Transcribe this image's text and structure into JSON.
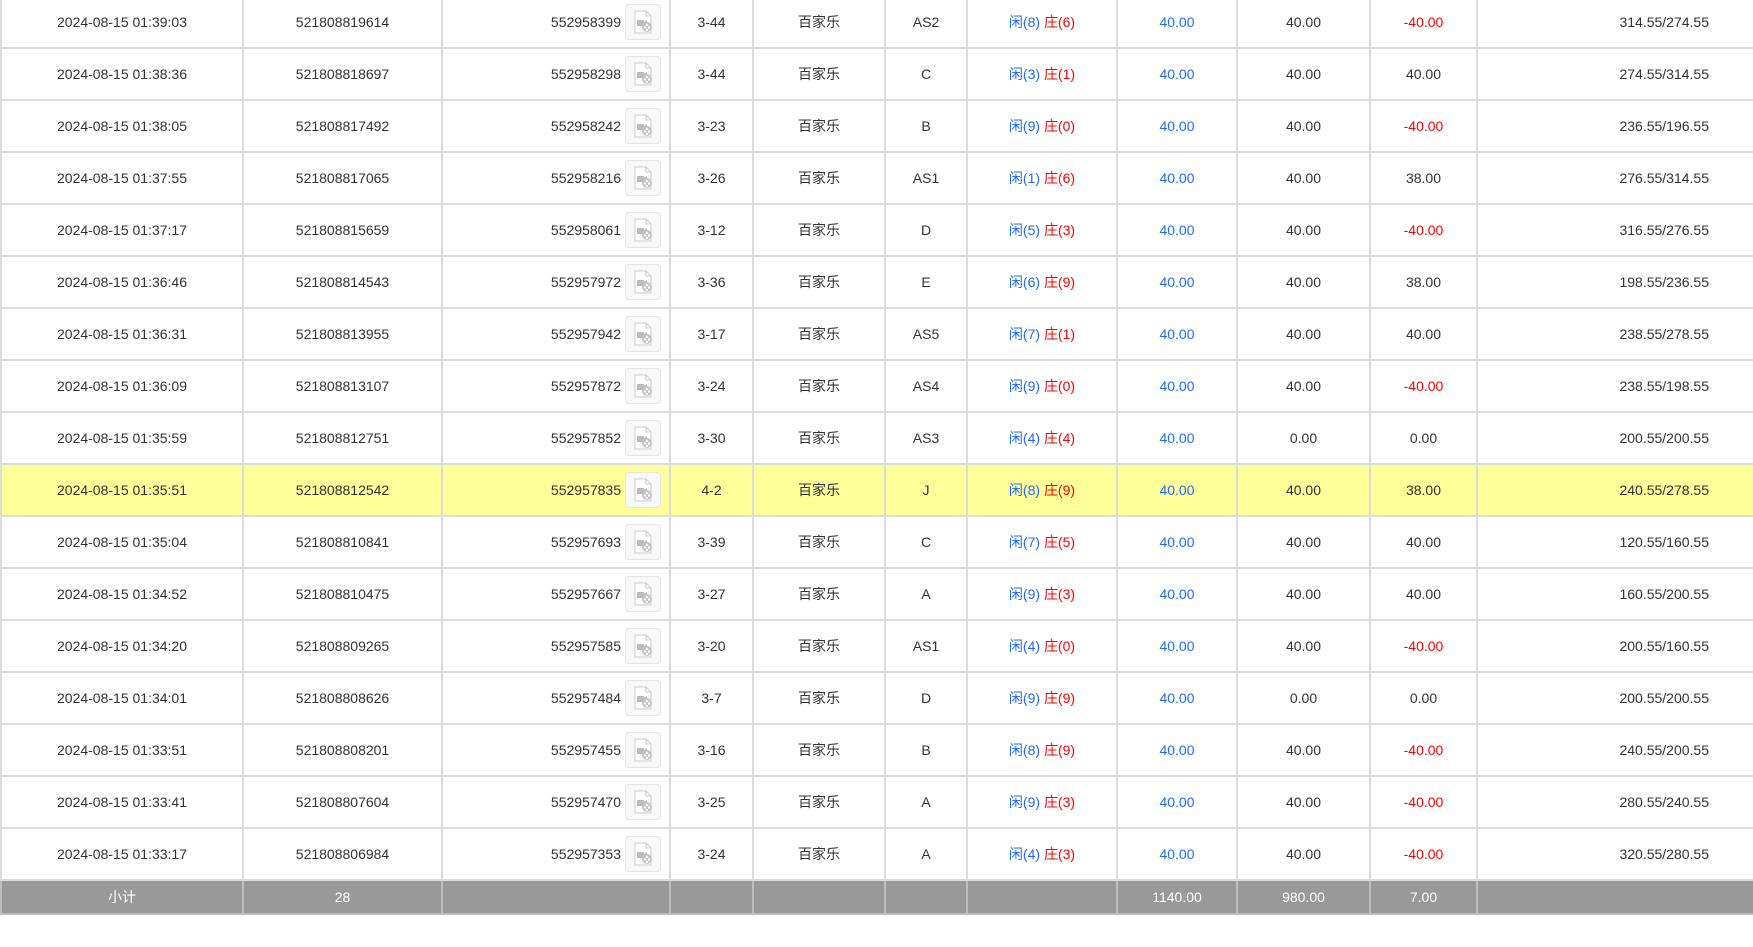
{
  "colors": {
    "player": "#1e6bff",
    "banker": "#ff0000",
    "highlight": "#ffff99",
    "footer": "#999999"
  },
  "rows": [
    {
      "time": "2024-08-15 01:39:03",
      "bet_id": "521808819614",
      "game_id": "552958399",
      "table": "3-44",
      "game": "百家乐",
      "seat": "AS2",
      "player": "闲(8)",
      "banker": "庄(6)",
      "bet": "40.00",
      "valid": "40.00",
      "win": "-40.00",
      "balance": "314.55/274.55"
    },
    {
      "time": "2024-08-15 01:38:36",
      "bet_id": "521808818697",
      "game_id": "552958298",
      "table": "3-44",
      "game": "百家乐",
      "seat": "C",
      "player": "闲(3)",
      "banker": "庄(1)",
      "bet": "40.00",
      "valid": "40.00",
      "win": "40.00",
      "balance": "274.55/314.55"
    },
    {
      "time": "2024-08-15 01:38:05",
      "bet_id": "521808817492",
      "game_id": "552958242",
      "table": "3-23",
      "game": "百家乐",
      "seat": "B",
      "player": "闲(9)",
      "banker": "庄(0)",
      "bet": "40.00",
      "valid": "40.00",
      "win": "-40.00",
      "balance": "236.55/196.55"
    },
    {
      "time": "2024-08-15 01:37:55",
      "bet_id": "521808817065",
      "game_id": "552958216",
      "table": "3-26",
      "game": "百家乐",
      "seat": "AS1",
      "player": "闲(1)",
      "banker": "庄(6)",
      "bet": "40.00",
      "valid": "40.00",
      "win": "38.00",
      "balance": "276.55/314.55"
    },
    {
      "time": "2024-08-15 01:37:17",
      "bet_id": "521808815659",
      "game_id": "552958061",
      "table": "3-12",
      "game": "百家乐",
      "seat": "D",
      "player": "闲(5)",
      "banker": "庄(3)",
      "bet": "40.00",
      "valid": "40.00",
      "win": "-40.00",
      "balance": "316.55/276.55"
    },
    {
      "time": "2024-08-15 01:36:46",
      "bet_id": "521808814543",
      "game_id": "552957972",
      "table": "3-36",
      "game": "百家乐",
      "seat": "E",
      "player": "闲(6)",
      "banker": "庄(9)",
      "bet": "40.00",
      "valid": "40.00",
      "win": "38.00",
      "balance": "198.55/236.55"
    },
    {
      "time": "2024-08-15 01:36:31",
      "bet_id": "521808813955",
      "game_id": "552957942",
      "table": "3-17",
      "game": "百家乐",
      "seat": "AS5",
      "player": "闲(7)",
      "banker": "庄(1)",
      "bet": "40.00",
      "valid": "40.00",
      "win": "40.00",
      "balance": "238.55/278.55"
    },
    {
      "time": "2024-08-15 01:36:09",
      "bet_id": "521808813107",
      "game_id": "552957872",
      "table": "3-24",
      "game": "百家乐",
      "seat": "AS4",
      "player": "闲(9)",
      "banker": "庄(0)",
      "bet": "40.00",
      "valid": "40.00",
      "win": "-40.00",
      "balance": "238.55/198.55"
    },
    {
      "time": "2024-08-15 01:35:59",
      "bet_id": "521808812751",
      "game_id": "552957852",
      "table": "3-30",
      "game": "百家乐",
      "seat": "AS3",
      "player": "闲(4)",
      "banker": "庄(4)",
      "bet": "40.00",
      "valid": "0.00",
      "win": "0.00",
      "balance": "200.55/200.55"
    },
    {
      "time": "2024-08-15 01:35:51",
      "bet_id": "521808812542",
      "game_id": "552957835",
      "table": "4-2",
      "game": "百家乐",
      "seat": "J",
      "player": "闲(8)",
      "banker": "庄(9)",
      "bet": "40.00",
      "valid": "40.00",
      "win": "38.00",
      "balance": "240.55/278.55",
      "highlighted": true
    },
    {
      "time": "2024-08-15 01:35:04",
      "bet_id": "521808810841",
      "game_id": "552957693",
      "table": "3-39",
      "game": "百家乐",
      "seat": "C",
      "player": "闲(7)",
      "banker": "庄(5)",
      "bet": "40.00",
      "valid": "40.00",
      "win": "40.00",
      "balance": "120.55/160.55"
    },
    {
      "time": "2024-08-15 01:34:52",
      "bet_id": "521808810475",
      "game_id": "552957667",
      "table": "3-27",
      "game": "百家乐",
      "seat": "A",
      "player": "闲(9)",
      "banker": "庄(3)",
      "bet": "40.00",
      "valid": "40.00",
      "win": "40.00",
      "balance": "160.55/200.55"
    },
    {
      "time": "2024-08-15 01:34:20",
      "bet_id": "521808809265",
      "game_id": "552957585",
      "table": "3-20",
      "game": "百家乐",
      "seat": "AS1",
      "player": "闲(4)",
      "banker": "庄(0)",
      "bet": "40.00",
      "valid": "40.00",
      "win": "-40.00",
      "balance": "200.55/160.55"
    },
    {
      "time": "2024-08-15 01:34:01",
      "bet_id": "521808808626",
      "game_id": "552957484",
      "table": "3-7",
      "game": "百家乐",
      "seat": "D",
      "player": "闲(9)",
      "banker": "庄(9)",
      "bet": "40.00",
      "valid": "0.00",
      "win": "0.00",
      "balance": "200.55/200.55"
    },
    {
      "time": "2024-08-15 01:33:51",
      "bet_id": "521808808201",
      "game_id": "552957455",
      "table": "3-16",
      "game": "百家乐",
      "seat": "B",
      "player": "闲(8)",
      "banker": "庄(9)",
      "bet": "40.00",
      "valid": "40.00",
      "win": "-40.00",
      "balance": "240.55/200.55"
    },
    {
      "time": "2024-08-15 01:33:41",
      "bet_id": "521808807604",
      "game_id": "552957470",
      "table": "3-25",
      "game": "百家乐",
      "seat": "A",
      "player": "闲(9)",
      "banker": "庄(3)",
      "bet": "40.00",
      "valid": "40.00",
      "win": "-40.00",
      "balance": "280.55/240.55"
    },
    {
      "time": "2024-08-15 01:33:17",
      "bet_id": "521808806984",
      "game_id": "552957353",
      "table": "3-24",
      "game": "百家乐",
      "seat": "A",
      "player": "闲(4)",
      "banker": "庄(3)",
      "bet": "40.00",
      "valid": "40.00",
      "win": "-40.00",
      "balance": "320.55/280.55"
    }
  ],
  "subtotal": {
    "label": "小计",
    "count": "28",
    "bet": "1140.00",
    "valid": "980.00",
    "win": "7.00"
  }
}
